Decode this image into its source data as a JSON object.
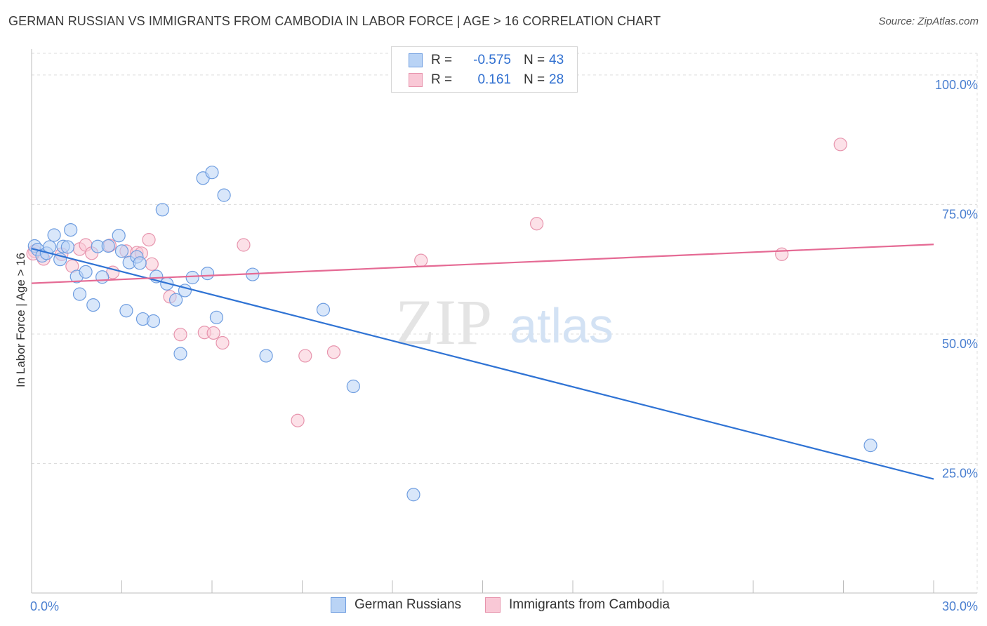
{
  "header": {
    "title": "GERMAN RUSSIAN VS IMMIGRANTS FROM CAMBODIA IN LABOR FORCE | AGE > 16 CORRELATION CHART",
    "source": "Source: ZipAtlas.com"
  },
  "watermark": {
    "zip": "ZIP",
    "atlas": "atlas"
  },
  "legend_top": {
    "rows": [
      {
        "r_label": "R =",
        "r_value": "-0.575",
        "n_label": "N =",
        "n_value": "43"
      },
      {
        "r_label": "R =",
        "r_value": "0.161",
        "n_label": "N =",
        "n_value": "28"
      }
    ]
  },
  "legend_bottom": {
    "series1": "German Russians",
    "series2": "Immigrants from Cambodia"
  },
  "colors": {
    "blue_fill": "#b9d3f5",
    "blue_stroke": "#6e9de0",
    "blue_line": "#2f73d4",
    "pink_fill": "#f9c8d6",
    "pink_stroke": "#e794ad",
    "pink_line": "#e56a94",
    "tick_text": "#4a7fd0",
    "grid": "#dcdcdc"
  },
  "chart_data": {
    "type": "scatter",
    "title": "GERMAN RUSSIAN VS IMMIGRANTS FROM CAMBODIA IN LABOR FORCE | AGE > 16 CORRELATION CHART",
    "xlabel": "",
    "ylabel": "In Labor Force | Age > 16",
    "xlim": [
      0,
      30
    ],
    "ylim": [
      0,
      105
    ],
    "x_tick_labels": [
      "0.0%",
      "30.0%"
    ],
    "y_ticks": [
      25,
      50,
      75,
      100
    ],
    "y_tick_labels": [
      "25.0%",
      "50.0%",
      "75.0%",
      "100.0%"
    ],
    "series": [
      {
        "name": "German Russians",
        "color": "blue",
        "trend": {
          "x": [
            0,
            30
          ],
          "y": [
            66.5,
            22.0
          ]
        },
        "points": [
          [
            0.1,
            67.0
          ],
          [
            0.2,
            66.3
          ],
          [
            0.35,
            65.1
          ],
          [
            0.5,
            65.6
          ],
          [
            0.6,
            66.8
          ],
          [
            0.75,
            69.1
          ],
          [
            0.95,
            64.4
          ],
          [
            1.05,
            66.9
          ],
          [
            1.2,
            66.8
          ],
          [
            1.3,
            70.1
          ],
          [
            1.5,
            61.1
          ],
          [
            1.6,
            57.7
          ],
          [
            1.8,
            62.0
          ],
          [
            2.05,
            55.6
          ],
          [
            2.2,
            66.9
          ],
          [
            2.35,
            61.0
          ],
          [
            2.55,
            67.0
          ],
          [
            2.9,
            69.0
          ],
          [
            3.0,
            66.0
          ],
          [
            3.15,
            54.5
          ],
          [
            3.25,
            63.8
          ],
          [
            3.5,
            64.9
          ],
          [
            3.6,
            63.7
          ],
          [
            3.7,
            52.9
          ],
          [
            4.05,
            52.5
          ],
          [
            4.15,
            61.1
          ],
          [
            4.35,
            74.0
          ],
          [
            4.5,
            59.7
          ],
          [
            4.8,
            56.6
          ],
          [
            4.95,
            46.2
          ],
          [
            5.1,
            58.4
          ],
          [
            5.35,
            60.9
          ],
          [
            5.7,
            80.1
          ],
          [
            5.85,
            61.7
          ],
          [
            6.0,
            81.2
          ],
          [
            6.15,
            53.2
          ],
          [
            6.4,
            76.8
          ],
          [
            7.35,
            61.5
          ],
          [
            7.8,
            45.8
          ],
          [
            9.7,
            54.7
          ],
          [
            10.7,
            39.9
          ],
          [
            12.7,
            19.0
          ],
          [
            27.9,
            28.5
          ]
        ]
      },
      {
        "name": "Immigrants from Cambodia",
        "color": "pink",
        "trend": {
          "x": [
            0,
            30
          ],
          "y": [
            59.8,
            67.3
          ]
        },
        "points": [
          [
            0.1,
            66.0
          ],
          [
            0.4,
            64.5
          ],
          [
            1.0,
            65.4
          ],
          [
            1.35,
            63.1
          ],
          [
            1.6,
            66.4
          ],
          [
            1.8,
            67.2
          ],
          [
            2.0,
            65.6
          ],
          [
            2.6,
            67.1
          ],
          [
            2.7,
            61.9
          ],
          [
            3.15,
            66.0
          ],
          [
            3.5,
            65.7
          ],
          [
            3.65,
            65.6
          ],
          [
            3.9,
            68.2
          ],
          [
            4.0,
            63.5
          ],
          [
            4.6,
            57.2
          ],
          [
            4.95,
            49.9
          ],
          [
            5.75,
            50.3
          ],
          [
            6.05,
            50.2
          ],
          [
            6.35,
            48.3
          ],
          [
            7.05,
            67.2
          ],
          [
            8.85,
            33.3
          ],
          [
            9.1,
            45.8
          ],
          [
            10.05,
            46.5
          ],
          [
            12.95,
            64.2
          ],
          [
            16.8,
            71.3
          ],
          [
            24.95,
            65.4
          ],
          [
            26.9,
            86.6
          ],
          [
            0.05,
            65.5
          ]
        ]
      }
    ]
  }
}
